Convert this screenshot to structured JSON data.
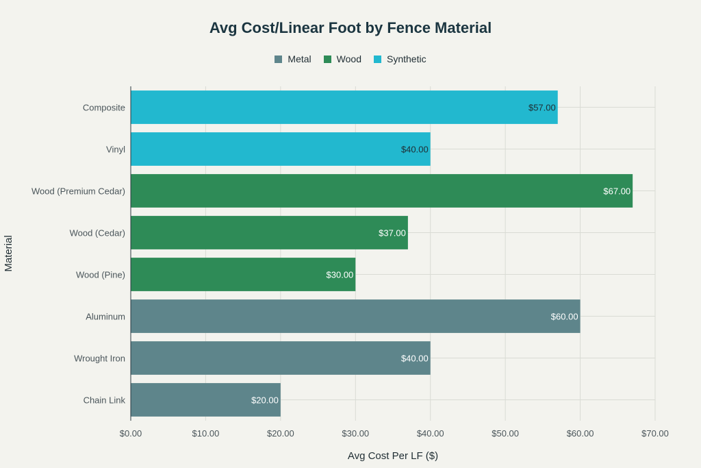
{
  "chart_data": {
    "type": "bar",
    "orientation": "horizontal",
    "title": "Avg Cost/Linear Foot by Fence Material",
    "xlabel": "Avg Cost Per LF ($)",
    "ylabel": "Material",
    "xlim": [
      0,
      70
    ],
    "x_ticks": [
      0,
      10,
      20,
      30,
      40,
      50,
      60,
      70
    ],
    "x_tick_labels": [
      "$0.00",
      "$10.00",
      "$20.00",
      "$30.00",
      "$40.00",
      "$50.00",
      "$60.00",
      "$70.00"
    ],
    "grid": true,
    "legend_position": "top-center",
    "legend": [
      {
        "name": "Metal",
        "color": "#5e858b"
      },
      {
        "name": "Wood",
        "color": "#2e8b57"
      },
      {
        "name": "Synthetic",
        "color": "#22b8cf"
      }
    ],
    "bars": [
      {
        "category": "Composite",
        "value": 57,
        "label": "$57.00",
        "group": "Synthetic"
      },
      {
        "category": "Vinyl",
        "value": 40,
        "label": "$40.00",
        "group": "Synthetic"
      },
      {
        "category": "Wood (Premium Cedar)",
        "value": 67,
        "label": "$67.00",
        "group": "Wood"
      },
      {
        "category": "Wood (Cedar)",
        "value": 37,
        "label": "$37.00",
        "group": "Wood"
      },
      {
        "category": "Wood (Pine)",
        "value": 30,
        "label": "$30.00",
        "group": "Wood"
      },
      {
        "category": "Aluminum",
        "value": 60,
        "label": "$60.00",
        "group": "Metal"
      },
      {
        "category": "Wrought Iron",
        "value": 40,
        "label": "$40.00",
        "group": "Metal"
      },
      {
        "category": "Chain Link",
        "value": 20,
        "label": "$20.00",
        "group": "Metal"
      }
    ]
  }
}
